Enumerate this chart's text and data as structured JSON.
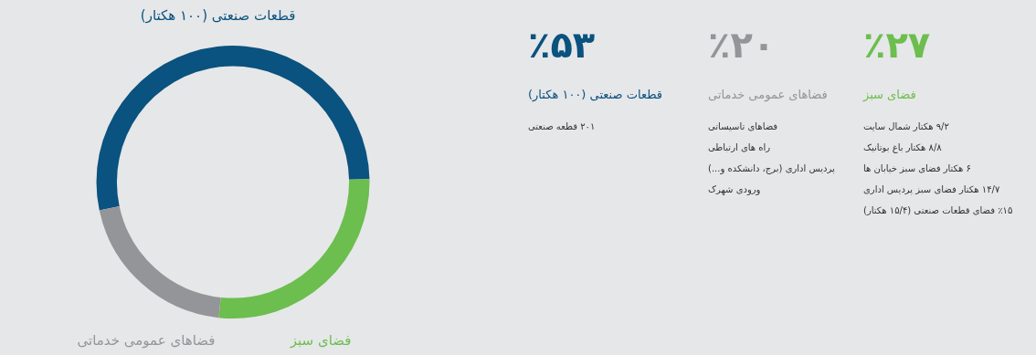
{
  "chart_data": [
    {
      "type": "donut",
      "categories": [
        "قطعات صنعتی (۱۰۰ هکتار)",
        "فضای سبز",
        "فضاهای عمومی خدماتی"
      ],
      "values": [
        53,
        27,
        20
      ],
      "colors": [
        "#0a527f",
        "#6cbe4e",
        "#949598"
      ]
    },
    {
      "type": "other",
      "title": "٪۲۷",
      "subtitle": "فضای سبز",
      "color": "#6cbe4e",
      "annotations": [
        "۹/۲ هکتار شمال سایت",
        "۸/۸ هکتار باغ بوتانیک",
        "۶ هکتار فضای سبز خیابان ها",
        "۱۴/۷ هکتار فضای سبز پردیس اداری",
        "٪۱۵ فضای قطعات صنعتی (۱۵/۴ هکتار)"
      ]
    },
    {
      "type": "other",
      "title": "٪۲۰",
      "subtitle": "فضاهای عمومی خدماتی",
      "color": "#949598",
      "annotations": [
        "فضاهای تاسیساتی",
        "راه های ارتباطی",
        "پردیس اداری (برج، دانشکده و...)",
        "ورودی شهرک"
      ]
    },
    {
      "type": "other",
      "title": "٪۵۳",
      "subtitle": "قطعات صنعتی (۱۰۰ هکتار)",
      "color": "#0a527f",
      "annotations": [
        "۲۰۱ قطعه صنعتی"
      ]
    }
  ]
}
